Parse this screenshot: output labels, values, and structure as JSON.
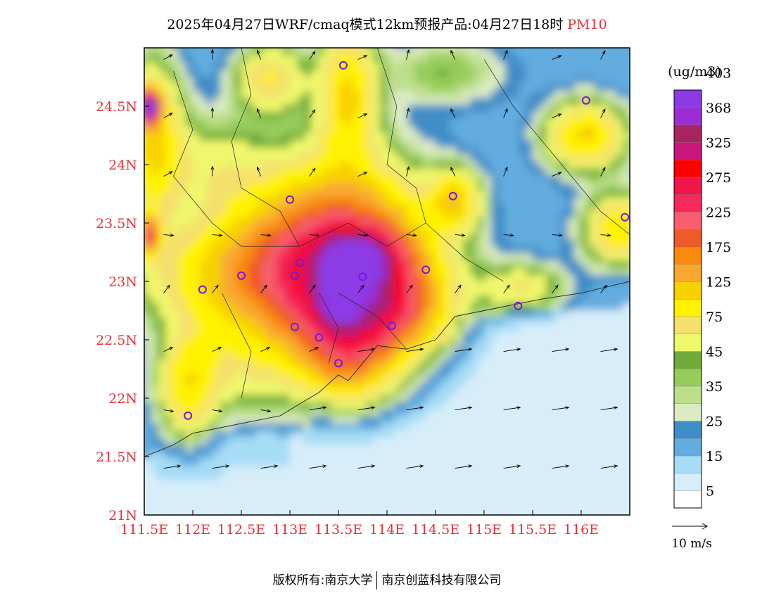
{
  "title": {
    "text": "2025年04月27日WRF/cmaq模式12km预报产品:04月27日18时",
    "variable": "PM10",
    "variable_color": "#e8323c"
  },
  "footer": {
    "left": "版权所有:南京大学",
    "right": "南京创蓝科技有限公司"
  },
  "chart_data": {
    "type": "heatmap",
    "title": "2025年04月27日WRF/cmaq模式12km预报产品:04月27日18时 PM10",
    "xlabel": "",
    "ylabel": "",
    "xlim": [
      111.5,
      116.5
    ],
    "ylim": [
      21,
      25
    ],
    "x_ticks": [
      "111.5E",
      "112E",
      "112.5E",
      "113E",
      "113.5E",
      "114E",
      "114.5E",
      "115E",
      "115.5E",
      "116E"
    ],
    "x_tick_values": [
      111.5,
      112,
      112.5,
      113,
      113.5,
      114,
      114.5,
      115,
      115.5,
      116
    ],
    "y_ticks": [
      "21N",
      "21.5N",
      "22N",
      "22.5N",
      "23N",
      "23.5N",
      "24N",
      "24.5N"
    ],
    "y_tick_values": [
      21,
      21.5,
      22,
      22.5,
      23,
      23.5,
      24,
      24.5
    ],
    "tick_label_color": "#e8323c",
    "colorbar": {
      "unit": "(ug/m3)",
      "labels": [
        "5",
        "15",
        "25",
        "35",
        "45",
        "75",
        "125",
        "175",
        "225",
        "275",
        "325",
        "368",
        "403"
      ],
      "colors": [
        "#ffffff",
        "#d7eefa",
        "#a6dcf5",
        "#62acdf",
        "#3f8dc7",
        "#dcebc4",
        "#bedf8a",
        "#96cc5a",
        "#6faa3a",
        "#eff76c",
        "#f4e06c",
        "#fff200",
        "#f7d100",
        "#f8a830",
        "#f98a10",
        "#ee5a28",
        "#f75e6e",
        "#f52a5a",
        "#f0154a",
        "#ff0000",
        "#c8167a",
        "#a8245e",
        "#9a2cd0",
        "#8c3ae6"
      ]
    },
    "wind_scale": {
      "label": "10 m/s"
    },
    "stations": [
      {
        "lon": 113.55,
        "lat": 24.85
      },
      {
        "lon": 116.05,
        "lat": 24.55
      },
      {
        "lon": 113.0,
        "lat": 23.7
      },
      {
        "lon": 114.68,
        "lat": 23.73
      },
      {
        "lon": 116.45,
        "lat": 23.55
      },
      {
        "lon": 113.1,
        "lat": 23.16
      },
      {
        "lon": 113.05,
        "lat": 23.05
      },
      {
        "lon": 113.75,
        "lat": 23.04
      },
      {
        "lon": 114.4,
        "lat": 23.1
      },
      {
        "lon": 112.5,
        "lat": 23.05
      },
      {
        "lon": 112.1,
        "lat": 22.93
      },
      {
        "lon": 115.35,
        "lat": 22.79
      },
      {
        "lon": 113.05,
        "lat": 22.61
      },
      {
        "lon": 113.3,
        "lat": 22.52
      },
      {
        "lon": 114.05,
        "lat": 22.62
      },
      {
        "lon": 113.5,
        "lat": 22.3
      },
      {
        "lon": 111.95,
        "lat": 21.85
      }
    ],
    "concentration_field": [
      {
        "lon": 113.7,
        "lat": 23.2,
        "value": 240,
        "sx": 0.25,
        "sy": 0.15
      },
      {
        "lon": 113.5,
        "lat": 22.9,
        "value": 220,
        "sx": 0.12,
        "sy": 0.18
      },
      {
        "lon": 113.6,
        "lat": 23.05,
        "value": 160,
        "sx": 0.55,
        "sy": 0.5
      },
      {
        "lon": 113.3,
        "lat": 23.2,
        "value": 110,
        "sx": 0.7,
        "sy": 0.55
      },
      {
        "lon": 113.9,
        "lat": 22.8,
        "value": 140,
        "sx": 0.4,
        "sy": 0.25
      },
      {
        "lon": 113.6,
        "lat": 22.35,
        "value": 90,
        "sx": 0.3,
        "sy": 0.25
      },
      {
        "lon": 112.5,
        "lat": 23.05,
        "value": 70,
        "sx": 0.7,
        "sy": 0.3
      },
      {
        "lon": 111.55,
        "lat": 24.5,
        "value": 403,
        "sx": 0.07,
        "sy": 0.09
      },
      {
        "lon": 111.6,
        "lat": 24.2,
        "value": 90,
        "sx": 0.2,
        "sy": 0.45
      },
      {
        "lon": 111.55,
        "lat": 23.4,
        "value": 200,
        "sx": 0.06,
        "sy": 0.1
      },
      {
        "lon": 113.6,
        "lat": 24.6,
        "value": 85,
        "sx": 0.2,
        "sy": 0.4
      },
      {
        "lon": 112.8,
        "lat": 24.75,
        "value": 60,
        "sx": 0.25,
        "sy": 0.2
      },
      {
        "lon": 114.7,
        "lat": 23.7,
        "value": 90,
        "sx": 0.17,
        "sy": 0.17
      },
      {
        "lon": 116.05,
        "lat": 24.25,
        "value": 90,
        "sx": 0.28,
        "sy": 0.2
      },
      {
        "lon": 116.4,
        "lat": 23.45,
        "value": 85,
        "sx": 0.25,
        "sy": 0.2
      },
      {
        "lon": 115.4,
        "lat": 22.95,
        "value": 45,
        "sx": 0.3,
        "sy": 0.15
      },
      {
        "lon": 111.95,
        "lat": 22.1,
        "value": 70,
        "sx": 0.2,
        "sy": 0.3
      },
      {
        "lon": 112.4,
        "lat": 22.3,
        "value": 30,
        "sx": 0.4,
        "sy": 0.3
      },
      {
        "lon": 114.6,
        "lat": 24.8,
        "value": 25,
        "sx": 0.45,
        "sy": 0.2
      },
      {
        "lon": 112.2,
        "lat": 24.0,
        "value": 30,
        "sx": 0.35,
        "sy": 0.3
      }
    ],
    "background_level": 15,
    "sea_level": 5
  }
}
